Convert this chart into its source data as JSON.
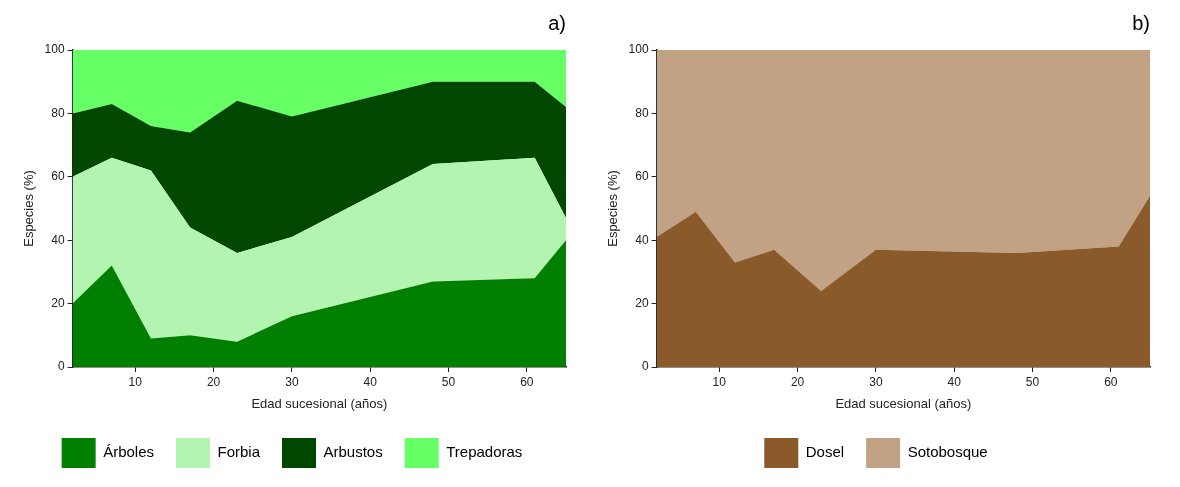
{
  "chart_data": [
    {
      "type": "area",
      "title": "a)",
      "xlabel": "Edad sucesional (años)",
      "ylabel": "Especies (%)",
      "stacked": true,
      "x": [
        2,
        7,
        12,
        17,
        23,
        30,
        48,
        61,
        65
      ],
      "xlim": [
        2,
        65
      ],
      "xticks": [
        10,
        20,
        30,
        40,
        50,
        60
      ],
      "ylim": [
        0,
        100
      ],
      "yticks": [
        0,
        20,
        40,
        60,
        80,
        100
      ],
      "grid": false,
      "legend": "bottom",
      "series": [
        {
          "name": "Árboles",
          "color": "#007f00",
          "values": [
            20,
            32,
            9,
            10,
            8,
            16,
            27,
            28,
            40
          ]
        },
        {
          "name": "Forbia",
          "color": "#b3f5b0",
          "values": [
            40,
            34,
            53,
            34,
            28,
            25,
            37,
            38,
            7
          ]
        },
        {
          "name": "Arbustos",
          "color": "#004700",
          "values": [
            20,
            17,
            14,
            30,
            48,
            38,
            26,
            24,
            35
          ]
        },
        {
          "name": "Trepadoras",
          "color": "#66ff66",
          "values": [
            20,
            17,
            24,
            26,
            16,
            21,
            10,
            10,
            18
          ]
        }
      ]
    },
    {
      "type": "area",
      "title": "b)",
      "xlabel": "Edad sucesional (años)",
      "ylabel": "Especies (%)",
      "stacked": true,
      "x": [
        2,
        7,
        12,
        17,
        23,
        30,
        48,
        61,
        65
      ],
      "xlim": [
        2,
        65
      ],
      "xticks": [
        10,
        20,
        30,
        40,
        50,
        60
      ],
      "ylim": [
        0,
        100
      ],
      "yticks": [
        0,
        20,
        40,
        60,
        80,
        100
      ],
      "grid": false,
      "legend": "bottom",
      "series": [
        {
          "name": "Dosel",
          "color": "#8b5a2b",
          "values": [
            41,
            49,
            33,
            37,
            24,
            37,
            36,
            38,
            54
          ]
        },
        {
          "name": "Sotobosque",
          "color": "#c2a284",
          "values": [
            59,
            51,
            67,
            63,
            76,
            63,
            64,
            62,
            46
          ]
        }
      ]
    }
  ]
}
